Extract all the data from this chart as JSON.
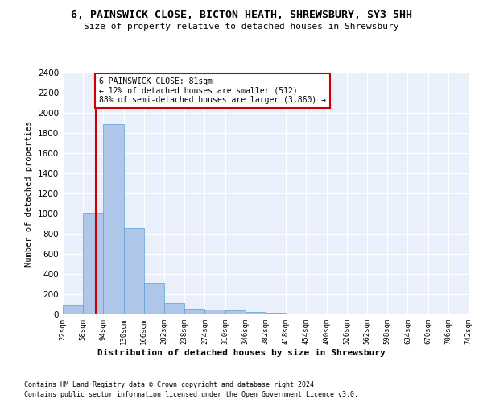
{
  "title": "6, PAINSWICK CLOSE, BICTON HEATH, SHREWSBURY, SY3 5HH",
  "subtitle": "Size of property relative to detached houses in Shrewsbury",
  "xlabel": "Distribution of detached houses by size in Shrewsbury",
  "ylabel": "Number of detached properties",
  "bar_color": "#aec6e8",
  "bar_edge_color": "#5a9fd4",
  "property_line_color": "#cc0000",
  "property_value": 81,
  "annotation_text": "6 PAINSWICK CLOSE: 81sqm\n← 12% of detached houses are smaller (512)\n88% of semi-detached houses are larger (3,860) →",
  "bin_edges": [
    22,
    58,
    94,
    130,
    166,
    202,
    238,
    274,
    310,
    346,
    382,
    418,
    454,
    490,
    526,
    562,
    598,
    634,
    670,
    706,
    742
  ],
  "bin_values": [
    90,
    1010,
    1890,
    860,
    315,
    115,
    60,
    50,
    40,
    25,
    20,
    0,
    0,
    0,
    0,
    0,
    0,
    0,
    0,
    0
  ],
  "ylim": [
    0,
    2400
  ],
  "yticks": [
    0,
    200,
    400,
    600,
    800,
    1000,
    1200,
    1400,
    1600,
    1800,
    2000,
    2200,
    2400
  ],
  "footer_line1": "Contains HM Land Registry data © Crown copyright and database right 2024.",
  "footer_line2": "Contains public sector information licensed under the Open Government Licence v3.0.",
  "plot_bg_color": "#eaf0fb"
}
